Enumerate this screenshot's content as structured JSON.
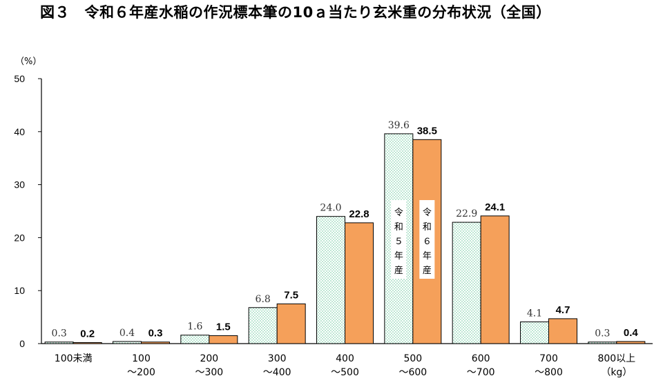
{
  "chart_data": {
    "type": "bar",
    "title": "図３　令和６年産水稲の作況標本筆の10ａ当たり玄米重の分布状況（全国）",
    "ylabel": "（%）",
    "xlabel": "（kg）",
    "ylim": [
      0,
      50
    ],
    "yticks": [
      "0",
      "10",
      "20",
      "30",
      "40",
      "50"
    ],
    "grid": false,
    "categories": [
      [
        "100未満"
      ],
      [
        "100",
        "～200"
      ],
      [
        "200",
        "～300"
      ],
      [
        "300",
        "～400"
      ],
      [
        "400",
        "～500"
      ],
      [
        "500",
        "～600"
      ],
      [
        "600",
        "～700"
      ],
      [
        "700",
        "～800"
      ],
      [
        "800以上"
      ]
    ],
    "series": [
      {
        "name": "令和５年産",
        "name_chars": [
          "令",
          "和",
          "５",
          "年",
          "産"
        ],
        "color": "#e6f7ef",
        "values": [
          0.3,
          0.4,
          1.6,
          6.8,
          24.0,
          39.6,
          22.9,
          4.1,
          0.3
        ],
        "value_labels": [
          "0.3",
          "0.4",
          "1.6",
          "6.8",
          "24.0",
          "39.6",
          "22.9",
          "4.1",
          "0.3"
        ]
      },
      {
        "name": "令和６年産",
        "name_chars": [
          "令",
          "和",
          "６",
          "年",
          "産"
        ],
        "color": "#f5a05a",
        "values": [
          0.2,
          0.3,
          1.5,
          7.5,
          22.8,
          38.5,
          24.1,
          4.7,
          0.4
        ],
        "value_labels": [
          "0.2",
          "0.3",
          "1.5",
          "7.5",
          "22.8",
          "38.5",
          "24.1",
          "4.7",
          "0.4"
        ]
      }
    ]
  }
}
